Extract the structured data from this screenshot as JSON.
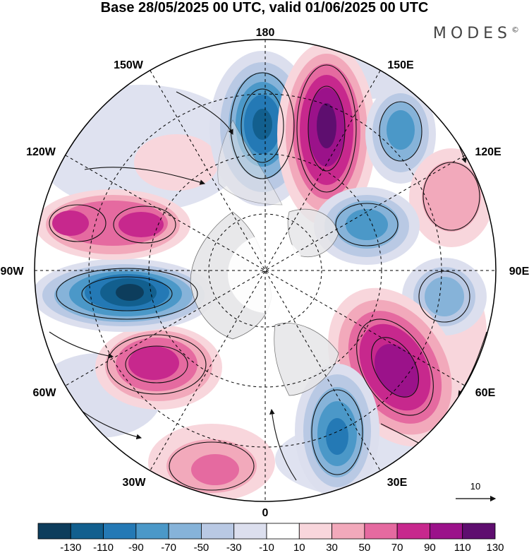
{
  "title": "Base 28/05/2025 00 UTC, valid 01/06/2025 00 UTC",
  "brand": "MODES",
  "brand_mark": "©",
  "longitude_labels": {
    "n180": "180",
    "n150e": "150E",
    "n120e": "120E",
    "n90e": "90E",
    "n60e": "60E",
    "n30e": "30E",
    "n0": "0",
    "n30w": "30W",
    "n60w": "60W",
    "n90w": "90W",
    "n120w": "120W",
    "n150w": "150W"
  },
  "reference_vector": {
    "label": "10"
  },
  "colorbar": {
    "ticks": [
      "-130",
      "-110",
      "-90",
      "-70",
      "-50",
      "-30",
      "-10",
      "10",
      "30",
      "50",
      "70",
      "90",
      "110",
      "130"
    ],
    "colors": [
      "#0d3d5c",
      "#125f8e",
      "#2479b5",
      "#4b98c8",
      "#86b3d9",
      "#b9c9e4",
      "#dcdfee",
      "#ffffff",
      "#f8d6dc",
      "#f2a9bb",
      "#e56aa0",
      "#c7288d",
      "#9b128a",
      "#5e0e6f"
    ]
  },
  "anomaly_centers": [
    {
      "sign": "negative",
      "level": -90,
      "location": "near 180"
    },
    {
      "sign": "positive",
      "level": 130,
      "location": "near 160E"
    },
    {
      "sign": "negative",
      "level": -70,
      "location": "near 150E"
    },
    {
      "sign": "positive",
      "level": 50,
      "location": "near 115E"
    },
    {
      "sign": "negative",
      "level": -70,
      "location": "near 120E inner"
    },
    {
      "sign": "negative",
      "level": -50,
      "location": "near 90E"
    },
    {
      "sign": "positive",
      "level": 110,
      "location": "near 55E"
    },
    {
      "sign": "negative",
      "level": -90,
      "location": "near 20E"
    },
    {
      "sign": "positive",
      "level": 70,
      "location": "near 15W"
    },
    {
      "sign": "positive",
      "level": 90,
      "location": "near 65W"
    },
    {
      "sign": "negative",
      "level": -130,
      "location": "near 85W"
    },
    {
      "sign": "positive",
      "level": 70,
      "location": "near 105W"
    }
  ]
}
